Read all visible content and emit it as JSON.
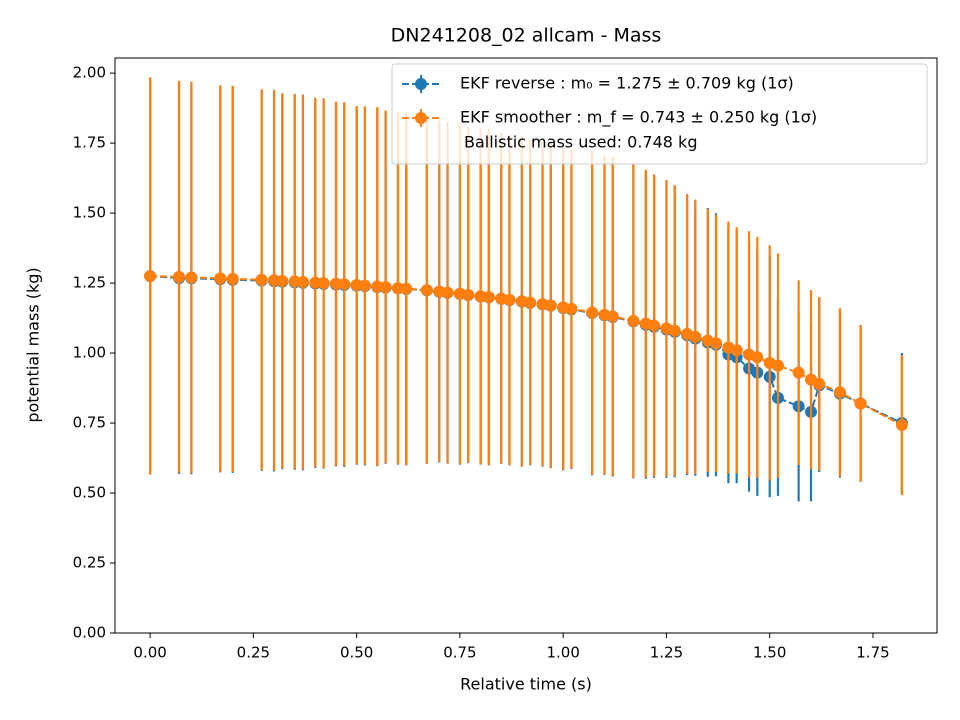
{
  "chart_data": {
    "type": "errorbar",
    "title": "DN241208_02 allcam - Mass",
    "x_label": "Relative time (s)",
    "y_label": "potential mass (kg)",
    "xlim": [
      -0.085,
      1.905
    ],
    "ylim": [
      0,
      2.054
    ],
    "xticks": [
      {
        "value": 0,
        "label": "0.00"
      },
      {
        "value": 0.25,
        "label": "0.25"
      },
      {
        "value": 0.5,
        "label": "0.50"
      },
      {
        "value": 0.75,
        "label": "0.75"
      },
      {
        "value": 1,
        "label": "1.00"
      },
      {
        "value": 1.25,
        "label": "1.25"
      },
      {
        "value": 1.5,
        "label": "1.50"
      },
      {
        "value": 1.75,
        "label": "1.75"
      }
    ],
    "yticks": [
      {
        "value": 0,
        "label": "0.00"
      },
      {
        "value": 0.25,
        "label": "0.25"
      },
      {
        "value": 0.5,
        "label": "0.50"
      },
      {
        "value": 0.75,
        "label": "0.75"
      },
      {
        "value": 1,
        "label": "1.00"
      },
      {
        "value": 1.25,
        "label": "1.25"
      },
      {
        "value": 1.5,
        "label": "1.50"
      },
      {
        "value": 1.75,
        "label": "1.75"
      },
      {
        "value": 2,
        "label": "2.00"
      }
    ],
    "legend_position": "upper right",
    "legend_note": "Ballistic mass used: 0.748 kg",
    "x": [
      0,
      0.07,
      0.1,
      0.17,
      0.2,
      0.27,
      0.3,
      0.32,
      0.35,
      0.37,
      0.4,
      0.42,
      0.45,
      0.47,
      0.5,
      0.52,
      0.55,
      0.57,
      0.6,
      0.62,
      0.67,
      0.7,
      0.72,
      0.75,
      0.77,
      0.8,
      0.82,
      0.85,
      0.87,
      0.9,
      0.92,
      0.95,
      0.97,
      1.0,
      1.02,
      1.07,
      1.1,
      1.12,
      1.17,
      1.2,
      1.22,
      1.25,
      1.27,
      1.3,
      1.32,
      1.35,
      1.37,
      1.4,
      1.42,
      1.45,
      1.47,
      1.5,
      1.52,
      1.57,
      1.6,
      1.62,
      1.67,
      1.72,
      1.82
    ],
    "series": [
      {
        "name": "EKF reverse : m₀ =  1.275 ± 0.709 kg (1σ)",
        "color": "#1f77b4",
        "values": [
          1.275,
          1.268,
          1.267,
          1.264,
          1.262,
          1.259,
          1.257,
          1.255,
          1.253,
          1.251,
          1.249,
          1.247,
          1.245,
          1.243,
          1.241,
          1.239,
          1.236,
          1.234,
          1.231,
          1.229,
          1.224,
          1.219,
          1.215,
          1.211,
          1.207,
          1.202,
          1.199,
          1.194,
          1.189,
          1.184,
          1.179,
          1.174,
          1.169,
          1.161,
          1.156,
          1.143,
          1.135,
          1.129,
          1.113,
          1.101,
          1.094,
          1.084,
          1.076,
          1.064,
          1.052,
          1.038,
          1.03,
          0.995,
          0.985,
          0.945,
          0.93,
          0.915,
          0.84,
          0.81,
          0.79,
          0.885,
          0.855,
          0.82,
          0.75
        ],
        "errors": [
          0.709,
          0.7,
          0.7,
          0.69,
          0.69,
          0.68,
          0.68,
          0.67,
          0.67,
          0.67,
          0.66,
          0.66,
          0.65,
          0.65,
          0.64,
          0.64,
          0.64,
          0.63,
          0.63,
          0.63,
          0.62,
          0.61,
          0.61,
          0.61,
          0.6,
          0.6,
          0.6,
          0.59,
          0.59,
          0.59,
          0.58,
          0.58,
          0.58,
          0.58,
          0.57,
          0.58,
          0.57,
          0.57,
          0.56,
          0.55,
          0.54,
          0.53,
          0.52,
          0.5,
          0.49,
          0.48,
          0.47,
          0.46,
          0.45,
          0.44,
          0.44,
          0.43,
          0.35,
          0.34,
          0.32,
          0.31,
          0.3,
          0.28,
          0.25
        ]
      },
      {
        "name": "EKF smoother : m_f =  0.743 ± 0.250 kg (1σ)",
        "color": "#ff7f0e",
        "values": [
          1.275,
          1.272,
          1.27,
          1.267,
          1.265,
          1.262,
          1.26,
          1.258,
          1.256,
          1.254,
          1.252,
          1.25,
          1.248,
          1.246,
          1.243,
          1.241,
          1.238,
          1.236,
          1.232,
          1.23,
          1.225,
          1.22,
          1.216,
          1.212,
          1.208,
          1.203,
          1.2,
          1.195,
          1.19,
          1.185,
          1.18,
          1.175,
          1.17,
          1.163,
          1.158,
          1.145,
          1.137,
          1.131,
          1.115,
          1.105,
          1.098,
          1.088,
          1.08,
          1.068,
          1.058,
          1.045,
          1.035,
          1.02,
          1.01,
          0.995,
          0.985,
          0.965,
          0.955,
          0.93,
          0.905,
          0.89,
          0.86,
          0.82,
          0.743
        ],
        "errors": [
          0.709,
          0.7,
          0.7,
          0.69,
          0.69,
          0.68,
          0.68,
          0.67,
          0.67,
          0.67,
          0.66,
          0.66,
          0.65,
          0.65,
          0.64,
          0.64,
          0.64,
          0.63,
          0.63,
          0.63,
          0.62,
          0.61,
          0.61,
          0.61,
          0.6,
          0.6,
          0.6,
          0.59,
          0.59,
          0.59,
          0.58,
          0.58,
          0.58,
          0.58,
          0.57,
          0.58,
          0.57,
          0.57,
          0.56,
          0.55,
          0.54,
          0.53,
          0.52,
          0.5,
          0.49,
          0.47,
          0.46,
          0.45,
          0.44,
          0.44,
          0.43,
          0.42,
          0.4,
          0.33,
          0.32,
          0.31,
          0.3,
          0.28,
          0.25
        ]
      }
    ]
  }
}
